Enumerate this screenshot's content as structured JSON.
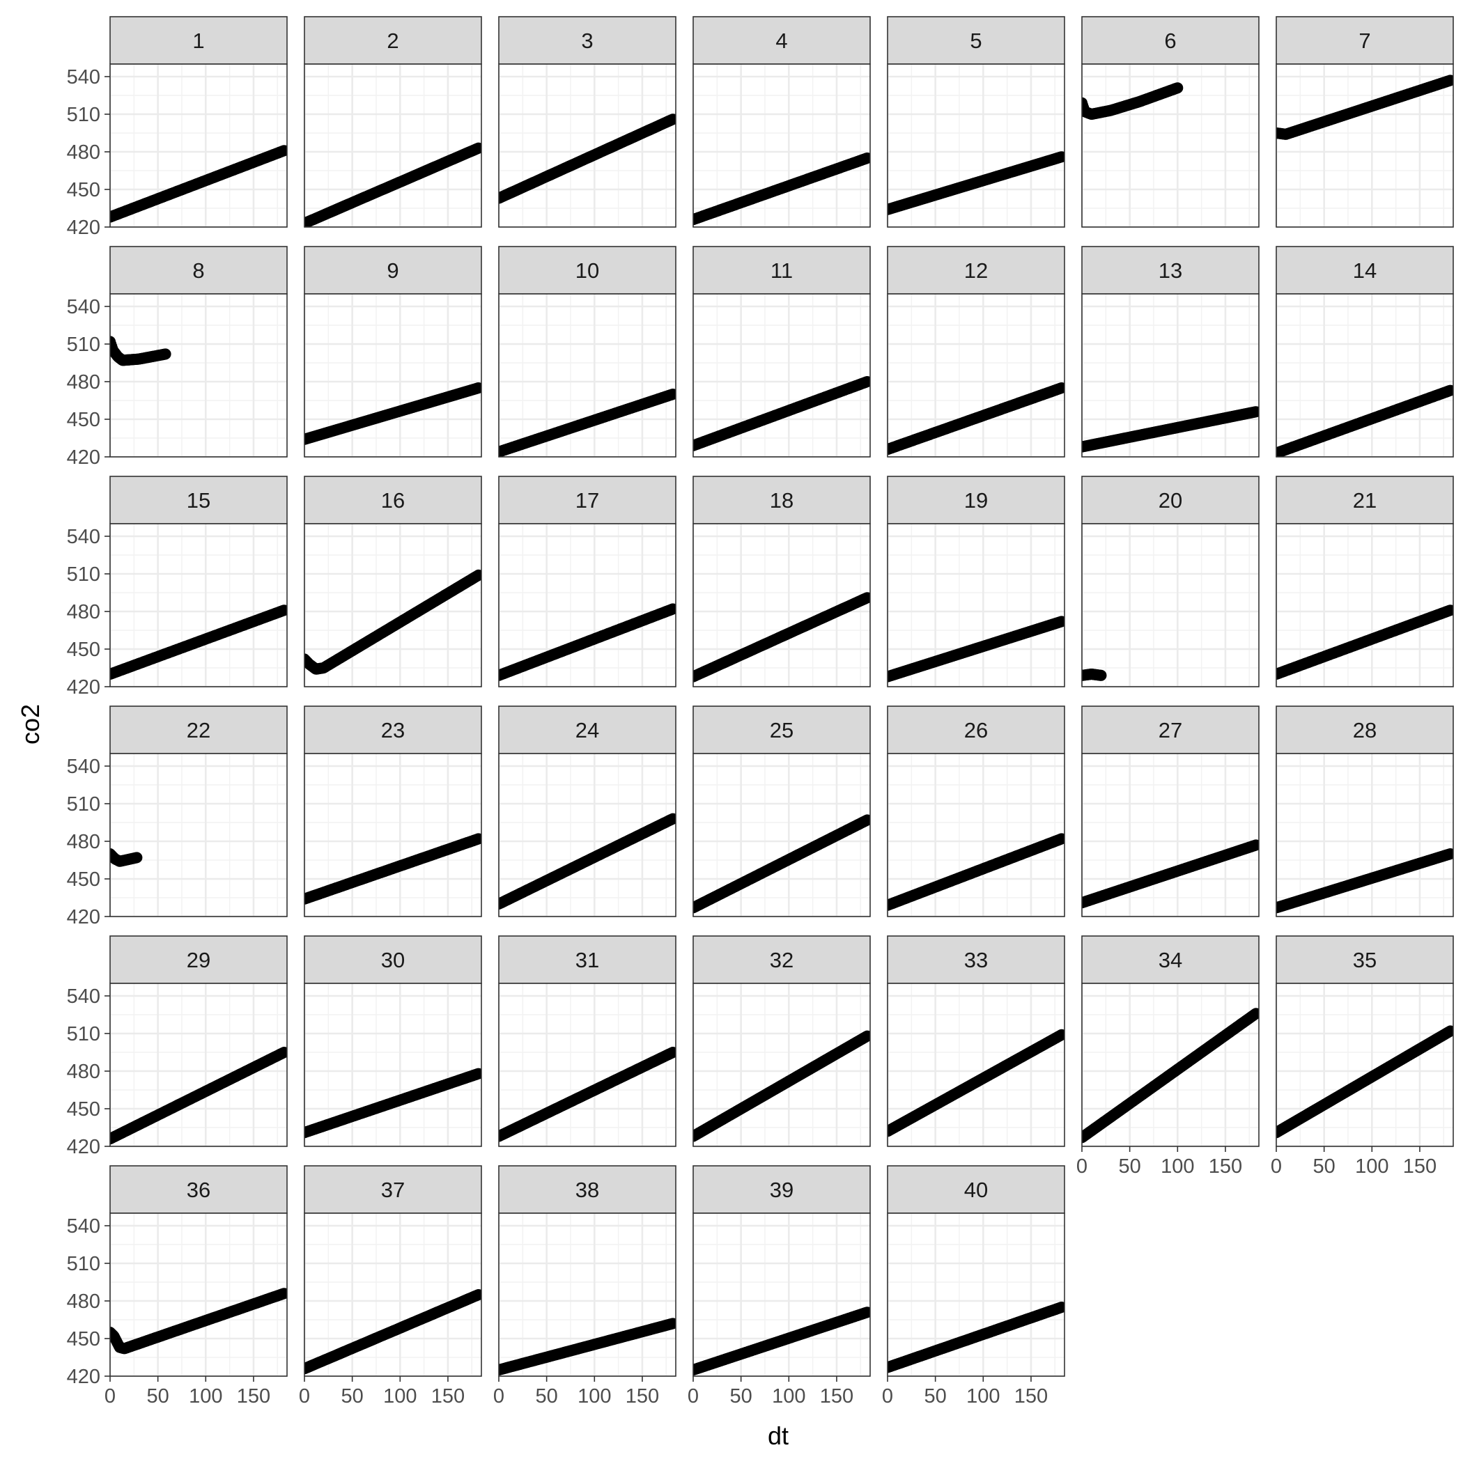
{
  "chart_data": {
    "type": "scatter",
    "layout": "facet_wrap",
    "ncol": 7,
    "xlabel": "dt",
    "ylabel": "co2",
    "xlim": [
      0,
      185
    ],
    "ylim": [
      420,
      550
    ],
    "x_ticks": [
      0,
      50,
      100,
      150
    ],
    "x_tick_labels": [
      "0",
      "50",
      "100",
      "150"
    ],
    "y_ticks": [
      420,
      450,
      480,
      510,
      540
    ],
    "y_tick_labels": [
      "420",
      "450",
      "480",
      "510",
      "540"
    ],
    "grid": true,
    "point_color": "#000000",
    "strip_fill": "#d9d9d9",
    "panels": [
      {
        "label": "1",
        "x": [
          0,
          182
        ],
        "curve": [
          [
            0,
            428
          ],
          [
            182,
            481
          ]
        ]
      },
      {
        "label": "2",
        "x": [
          0,
          182
        ],
        "curve": [
          [
            0,
            423
          ],
          [
            182,
            483
          ]
        ]
      },
      {
        "label": "3",
        "x": [
          0,
          182
        ],
        "curve": [
          [
            0,
            443
          ],
          [
            182,
            506
          ]
        ]
      },
      {
        "label": "4",
        "x": [
          0,
          182
        ],
        "curve": [
          [
            0,
            426
          ],
          [
            182,
            475
          ]
        ]
      },
      {
        "label": "5",
        "x": [
          0,
          182
        ],
        "curve": [
          [
            0,
            434
          ],
          [
            182,
            476
          ]
        ]
      },
      {
        "label": "6",
        "x": [
          0,
          100
        ],
        "curve": [
          [
            0,
            519
          ],
          [
            3,
            512
          ],
          [
            10,
            510
          ],
          [
            30,
            513
          ],
          [
            60,
            520
          ],
          [
            100,
            531
          ]
        ]
      },
      {
        "label": "7",
        "x": [
          0,
          182
        ],
        "curve": [
          [
            0,
            495
          ],
          [
            10,
            494
          ],
          [
            182,
            537
          ]
        ]
      },
      {
        "label": "8",
        "x": [
          0,
          58
        ],
        "curve": [
          [
            0,
            512
          ],
          [
            3,
            505
          ],
          [
            8,
            500
          ],
          [
            13,
            497
          ],
          [
            30,
            498
          ],
          [
            58,
            502
          ]
        ]
      },
      {
        "label": "9",
        "x": [
          0,
          182
        ],
        "curve": [
          [
            0,
            434
          ],
          [
            182,
            475
          ]
        ]
      },
      {
        "label": "10",
        "x": [
          0,
          182
        ],
        "curve": [
          [
            0,
            424
          ],
          [
            182,
            470
          ]
        ]
      },
      {
        "label": "11",
        "x": [
          0,
          182
        ],
        "curve": [
          [
            0,
            429
          ],
          [
            182,
            480
          ]
        ]
      },
      {
        "label": "12",
        "x": [
          0,
          182
        ],
        "curve": [
          [
            0,
            426
          ],
          [
            182,
            475
          ]
        ]
      },
      {
        "label": "13",
        "x": [
          0,
          182
        ],
        "curve": [
          [
            0,
            428
          ],
          [
            182,
            456
          ]
        ]
      },
      {
        "label": "14",
        "x": [
          0,
          182
        ],
        "curve": [
          [
            0,
            423
          ],
          [
            182,
            473
          ]
        ]
      },
      {
        "label": "15",
        "x": [
          0,
          182
        ],
        "curve": [
          [
            0,
            430
          ],
          [
            182,
            481
          ]
        ]
      },
      {
        "label": "16",
        "x": [
          0,
          182
        ],
        "curve": [
          [
            0,
            442
          ],
          [
            5,
            438
          ],
          [
            12,
            434
          ],
          [
            20,
            435
          ],
          [
            182,
            509
          ]
        ]
      },
      {
        "label": "17",
        "x": [
          0,
          182
        ],
        "curve": [
          [
            0,
            429
          ],
          [
            182,
            482
          ]
        ]
      },
      {
        "label": "18",
        "x": [
          0,
          182
        ],
        "curve": [
          [
            0,
            428
          ],
          [
            182,
            491
          ]
        ]
      },
      {
        "label": "19",
        "x": [
          0,
          182
        ],
        "curve": [
          [
            0,
            428
          ],
          [
            182,
            472
          ]
        ]
      },
      {
        "label": "20",
        "x": [
          0,
          20
        ],
        "curve": [
          [
            0,
            429
          ],
          [
            10,
            430
          ],
          [
            20,
            429
          ]
        ]
      },
      {
        "label": "21",
        "x": [
          0,
          182
        ],
        "curve": [
          [
            0,
            430
          ],
          [
            182,
            481
          ]
        ]
      },
      {
        "label": "22",
        "x": [
          0,
          28
        ],
        "curve": [
          [
            0,
            470
          ],
          [
            5,
            466
          ],
          [
            10,
            464
          ],
          [
            28,
            467
          ]
        ]
      },
      {
        "label": "23",
        "x": [
          0,
          182
        ],
        "curve": [
          [
            0,
            434
          ],
          [
            182,
            482
          ]
        ]
      },
      {
        "label": "24",
        "x": [
          0,
          182
        ],
        "curve": [
          [
            0,
            430
          ],
          [
            182,
            498
          ]
        ]
      },
      {
        "label": "25",
        "x": [
          0,
          182
        ],
        "curve": [
          [
            0,
            427
          ],
          [
            182,
            497
          ]
        ]
      },
      {
        "label": "26",
        "x": [
          0,
          182
        ],
        "curve": [
          [
            0,
            429
          ],
          [
            182,
            482
          ]
        ]
      },
      {
        "label": "27",
        "x": [
          0,
          182
        ],
        "curve": [
          [
            0,
            431
          ],
          [
            182,
            477
          ]
        ]
      },
      {
        "label": "28",
        "x": [
          0,
          182
        ],
        "curve": [
          [
            0,
            427
          ],
          [
            182,
            470
          ]
        ]
      },
      {
        "label": "29",
        "x": [
          0,
          182
        ],
        "curve": [
          [
            0,
            426
          ],
          [
            182,
            495
          ]
        ]
      },
      {
        "label": "30",
        "x": [
          0,
          182
        ],
        "curve": [
          [
            0,
            431
          ],
          [
            182,
            478
          ]
        ]
      },
      {
        "label": "31",
        "x": [
          0,
          182
        ],
        "curve": [
          [
            0,
            428
          ],
          [
            182,
            495
          ]
        ]
      },
      {
        "label": "32",
        "x": [
          0,
          182
        ],
        "curve": [
          [
            0,
            428
          ],
          [
            182,
            508
          ]
        ]
      },
      {
        "label": "33",
        "x": [
          0,
          182
        ],
        "curve": [
          [
            0,
            432
          ],
          [
            182,
            509
          ]
        ]
      },
      {
        "label": "34",
        "x": [
          0,
          182
        ],
        "curve": [
          [
            0,
            427
          ],
          [
            182,
            526
          ]
        ]
      },
      {
        "label": "35",
        "x": [
          0,
          182
        ],
        "curve": [
          [
            0,
            431
          ],
          [
            182,
            512
          ]
        ]
      },
      {
        "label": "36",
        "x": [
          0,
          182
        ],
        "curve": [
          [
            0,
            455
          ],
          [
            4,
            452
          ],
          [
            10,
            443
          ],
          [
            15,
            442
          ],
          [
            182,
            486
          ]
        ]
      },
      {
        "label": "37",
        "x": [
          0,
          182
        ],
        "curve": [
          [
            0,
            426
          ],
          [
            182,
            485
          ]
        ]
      },
      {
        "label": "38",
        "x": [
          0,
          182
        ],
        "curve": [
          [
            0,
            425
          ],
          [
            182,
            462
          ]
        ]
      },
      {
        "label": "39",
        "x": [
          0,
          182
        ],
        "curve": [
          [
            0,
            425
          ],
          [
            182,
            471
          ]
        ]
      },
      {
        "label": "40",
        "x": [
          0,
          182
        ],
        "curve": [
          [
            0,
            427
          ],
          [
            182,
            475
          ]
        ]
      }
    ]
  }
}
